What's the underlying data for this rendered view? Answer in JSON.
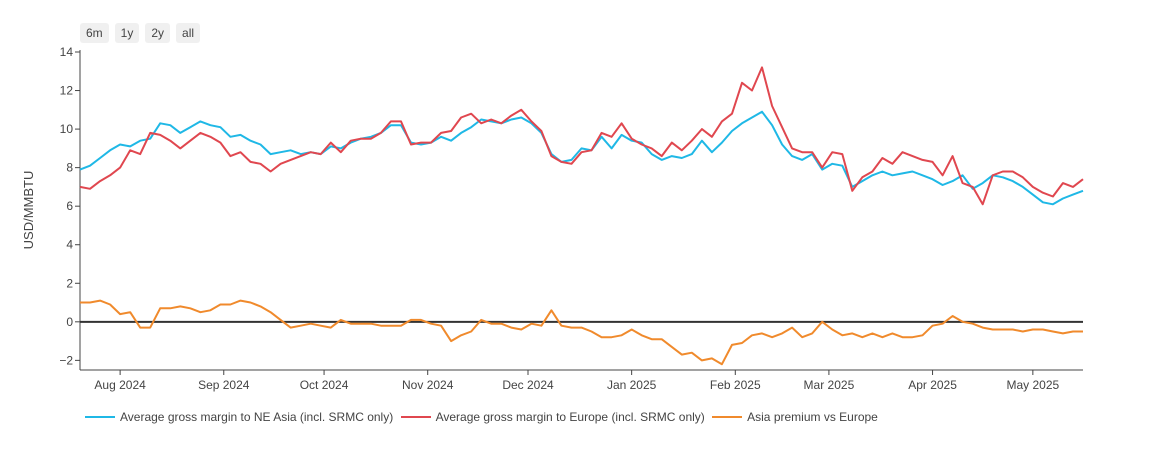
{
  "range_buttons": [
    "6m",
    "1y",
    "2y",
    "all"
  ],
  "chart_data": {
    "type": "line",
    "ylabel": "USD/MMBTU",
    "xlabel": "",
    "ylim": [
      -2.5,
      14
    ],
    "yticks": [
      14,
      12,
      10,
      8,
      6,
      4,
      2,
      0,
      -2
    ],
    "ytick_labels": [
      "14",
      "12",
      "10",
      "8",
      "6",
      "4",
      "2",
      "0",
      "−2"
    ],
    "xlim": [
      "2024-07-20",
      "2025-05-16"
    ],
    "xticks": [
      {
        "date": "2024-08-01",
        "label": "Aug 2024"
      },
      {
        "date": "2024-09-01",
        "label": "Sep 2024"
      },
      {
        "date": "2024-10-01",
        "label": "Oct 2024"
      },
      {
        "date": "2024-11-01",
        "label": "Nov 2024"
      },
      {
        "date": "2024-12-01",
        "label": "Dec 2024"
      },
      {
        "date": "2025-01-01",
        "label": "Jan 2025"
      },
      {
        "date": "2025-02-01",
        "label": "Feb 2025"
      },
      {
        "date": "2025-03-01",
        "label": "Mar 2025"
      },
      {
        "date": "2025-04-01",
        "label": "Apr 2025"
      },
      {
        "date": "2025-05-01",
        "label": "May 2025"
      }
    ],
    "zero_line": true,
    "grid": false,
    "legend_position": "bottom-left",
    "series": [
      {
        "name": "Average gross margin to NE Asia (incl. SRMC only)",
        "color": "#1fb8e6",
        "x": [
          "2024-07-20",
          "2024-07-23",
          "2024-07-26",
          "2024-07-29",
          "2024-08-01",
          "2024-08-04",
          "2024-08-07",
          "2024-08-10",
          "2024-08-13",
          "2024-08-16",
          "2024-08-19",
          "2024-08-22",
          "2024-08-25",
          "2024-08-28",
          "2024-08-31",
          "2024-09-03",
          "2024-09-06",
          "2024-09-09",
          "2024-09-12",
          "2024-09-15",
          "2024-09-18",
          "2024-09-21",
          "2024-09-24",
          "2024-09-27",
          "2024-09-30",
          "2024-10-03",
          "2024-10-06",
          "2024-10-09",
          "2024-10-12",
          "2024-10-15",
          "2024-10-18",
          "2024-10-21",
          "2024-10-24",
          "2024-10-27",
          "2024-10-30",
          "2024-11-02",
          "2024-11-05",
          "2024-11-08",
          "2024-11-11",
          "2024-11-14",
          "2024-11-17",
          "2024-11-20",
          "2024-11-23",
          "2024-11-26",
          "2024-11-29",
          "2024-12-02",
          "2024-12-05",
          "2024-12-08",
          "2024-12-11",
          "2024-12-14",
          "2024-12-17",
          "2024-12-20",
          "2024-12-23",
          "2024-12-26",
          "2024-12-29",
          "2025-01-01",
          "2025-01-04",
          "2025-01-07",
          "2025-01-10",
          "2025-01-13",
          "2025-01-16",
          "2025-01-19",
          "2025-01-22",
          "2025-01-25",
          "2025-01-28",
          "2025-01-31",
          "2025-02-03",
          "2025-02-06",
          "2025-02-09",
          "2025-02-12",
          "2025-02-15",
          "2025-02-18",
          "2025-02-21",
          "2025-02-24",
          "2025-02-27",
          "2025-03-02",
          "2025-03-05",
          "2025-03-08",
          "2025-03-11",
          "2025-03-14",
          "2025-03-17",
          "2025-03-20",
          "2025-03-23",
          "2025-03-26",
          "2025-03-29",
          "2025-04-01",
          "2025-04-04",
          "2025-04-07",
          "2025-04-10",
          "2025-04-13",
          "2025-04-16",
          "2025-04-19",
          "2025-04-22",
          "2025-04-25",
          "2025-04-28",
          "2025-05-01",
          "2025-05-04",
          "2025-05-07",
          "2025-05-10",
          "2025-05-13",
          "2025-05-16"
        ],
        "values": [
          7.9,
          8.1,
          8.5,
          8.9,
          9.2,
          9.1,
          9.4,
          9.5,
          10.3,
          10.2,
          9.8,
          10.1,
          10.4,
          10.2,
          10.1,
          9.6,
          9.7,
          9.4,
          9.2,
          8.7,
          8.8,
          8.9,
          8.7,
          8.8,
          8.7,
          9.1,
          9.0,
          9.3,
          9.5,
          9.6,
          9.8,
          10.2,
          10.2,
          9.3,
          9.2,
          9.3,
          9.6,
          9.4,
          9.8,
          10.1,
          10.5,
          10.4,
          10.3,
          10.5,
          10.6,
          10.3,
          9.8,
          8.7,
          8.3,
          8.4,
          9.0,
          8.9,
          9.6,
          9.0,
          9.7,
          9.4,
          9.3,
          8.7,
          8.4,
          8.6,
          8.5,
          8.7,
          9.4,
          8.8,
          9.3,
          9.9,
          10.3,
          10.6,
          10.9,
          10.2,
          9.2,
          8.6,
          8.4,
          8.7,
          7.9,
          8.2,
          8.1,
          7.0,
          7.3,
          7.6,
          7.8,
          7.6,
          7.7,
          7.8,
          7.6,
          7.4,
          7.1,
          7.3,
          7.6,
          6.9,
          7.2,
          7.6,
          7.5,
          7.3,
          7.0,
          6.6,
          6.2,
          6.1,
          6.4,
          6.6,
          6.8
        ]
      },
      {
        "name": "Average gross margin to Europe (incl. SRMC only)",
        "color": "#e0474f",
        "x": [
          "2024-07-20",
          "2024-07-23",
          "2024-07-26",
          "2024-07-29",
          "2024-08-01",
          "2024-08-04",
          "2024-08-07",
          "2024-08-10",
          "2024-08-13",
          "2024-08-16",
          "2024-08-19",
          "2024-08-22",
          "2024-08-25",
          "2024-08-28",
          "2024-08-31",
          "2024-09-03",
          "2024-09-06",
          "2024-09-09",
          "2024-09-12",
          "2024-09-15",
          "2024-09-18",
          "2024-09-21",
          "2024-09-24",
          "2024-09-27",
          "2024-09-30",
          "2024-10-03",
          "2024-10-06",
          "2024-10-09",
          "2024-10-12",
          "2024-10-15",
          "2024-10-18",
          "2024-10-21",
          "2024-10-24",
          "2024-10-27",
          "2024-10-30",
          "2024-11-02",
          "2024-11-05",
          "2024-11-08",
          "2024-11-11",
          "2024-11-14",
          "2024-11-17",
          "2024-11-20",
          "2024-11-23",
          "2024-11-26",
          "2024-11-29",
          "2024-12-02",
          "2024-12-05",
          "2024-12-08",
          "2024-12-11",
          "2024-12-14",
          "2024-12-17",
          "2024-12-20",
          "2024-12-23",
          "2024-12-26",
          "2024-12-29",
          "2025-01-01",
          "2025-01-04",
          "2025-01-07",
          "2025-01-10",
          "2025-01-13",
          "2025-01-16",
          "2025-01-19",
          "2025-01-22",
          "2025-01-25",
          "2025-01-28",
          "2025-01-31",
          "2025-02-03",
          "2025-02-06",
          "2025-02-09",
          "2025-02-12",
          "2025-02-15",
          "2025-02-18",
          "2025-02-21",
          "2025-02-24",
          "2025-02-27",
          "2025-03-02",
          "2025-03-05",
          "2025-03-08",
          "2025-03-11",
          "2025-03-14",
          "2025-03-17",
          "2025-03-20",
          "2025-03-23",
          "2025-03-26",
          "2025-03-29",
          "2025-04-01",
          "2025-04-04",
          "2025-04-07",
          "2025-04-10",
          "2025-04-13",
          "2025-04-16",
          "2025-04-19",
          "2025-04-22",
          "2025-04-25",
          "2025-04-28",
          "2025-05-01",
          "2025-05-04",
          "2025-05-07",
          "2025-05-10",
          "2025-05-13",
          "2025-05-16"
        ],
        "values": [
          7.0,
          6.9,
          7.3,
          7.6,
          8.0,
          8.9,
          8.7,
          9.8,
          9.7,
          9.4,
          9.0,
          9.4,
          9.8,
          9.6,
          9.3,
          8.6,
          8.8,
          8.3,
          8.2,
          7.8,
          8.2,
          8.4,
          8.6,
          8.8,
          8.7,
          9.3,
          8.8,
          9.4,
          9.5,
          9.5,
          9.8,
          10.4,
          10.4,
          9.2,
          9.3,
          9.3,
          9.8,
          9.9,
          10.6,
          10.8,
          10.3,
          10.5,
          10.3,
          10.7,
          11.0,
          10.4,
          9.9,
          8.6,
          8.3,
          8.2,
          8.8,
          8.9,
          9.8,
          9.6,
          10.3,
          9.5,
          9.2,
          9.0,
          8.6,
          9.3,
          8.9,
          9.4,
          10.0,
          9.6,
          10.4,
          10.8,
          12.4,
          12.0,
          13.2,
          11.2,
          10.1,
          9.0,
          8.8,
          8.8,
          8.0,
          8.8,
          8.7,
          6.8,
          7.5,
          7.8,
          8.5,
          8.2,
          8.8,
          8.6,
          8.4,
          8.3,
          7.6,
          8.6,
          7.2,
          7.0,
          6.1,
          7.6,
          7.8,
          7.8,
          7.5,
          7.0,
          6.7,
          6.5,
          7.2,
          7.0,
          7.4
        ]
      },
      {
        "name": "Asia premium vs Europe",
        "color": "#f08a2c",
        "x": [
          "2024-07-20",
          "2024-07-23",
          "2024-07-26",
          "2024-07-29",
          "2024-08-01",
          "2024-08-04",
          "2024-08-07",
          "2024-08-10",
          "2024-08-13",
          "2024-08-16",
          "2024-08-19",
          "2024-08-22",
          "2024-08-25",
          "2024-08-28",
          "2024-08-31",
          "2024-09-03",
          "2024-09-06",
          "2024-09-09",
          "2024-09-12",
          "2024-09-15",
          "2024-09-18",
          "2024-09-21",
          "2024-09-24",
          "2024-09-27",
          "2024-09-30",
          "2024-10-03",
          "2024-10-06",
          "2024-10-09",
          "2024-10-12",
          "2024-10-15",
          "2024-10-18",
          "2024-10-21",
          "2024-10-24",
          "2024-10-27",
          "2024-10-30",
          "2024-11-02",
          "2024-11-05",
          "2024-11-08",
          "2024-11-11",
          "2024-11-14",
          "2024-11-17",
          "2024-11-20",
          "2024-11-23",
          "2024-11-26",
          "2024-11-29",
          "2024-12-02",
          "2024-12-05",
          "2024-12-08",
          "2024-12-11",
          "2024-12-14",
          "2024-12-17",
          "2024-12-20",
          "2024-12-23",
          "2024-12-26",
          "2024-12-29",
          "2025-01-01",
          "2025-01-04",
          "2025-01-07",
          "2025-01-10",
          "2025-01-13",
          "2025-01-16",
          "2025-01-19",
          "2025-01-22",
          "2025-01-25",
          "2025-01-28",
          "2025-01-31",
          "2025-02-03",
          "2025-02-06",
          "2025-02-09",
          "2025-02-12",
          "2025-02-15",
          "2025-02-18",
          "2025-02-21",
          "2025-02-24",
          "2025-02-27",
          "2025-03-02",
          "2025-03-05",
          "2025-03-08",
          "2025-03-11",
          "2025-03-14",
          "2025-03-17",
          "2025-03-20",
          "2025-03-23",
          "2025-03-26",
          "2025-03-29",
          "2025-04-01",
          "2025-04-04",
          "2025-04-07",
          "2025-04-10",
          "2025-04-13",
          "2025-04-16",
          "2025-04-19",
          "2025-04-22",
          "2025-04-25",
          "2025-04-28",
          "2025-05-01",
          "2025-05-04",
          "2025-05-07",
          "2025-05-10",
          "2025-05-13",
          "2025-05-16"
        ],
        "values": [
          1.0,
          1.0,
          1.1,
          0.9,
          0.4,
          0.5,
          -0.3,
          -0.3,
          0.7,
          0.7,
          0.8,
          0.7,
          0.5,
          0.6,
          0.9,
          0.9,
          1.1,
          1.0,
          0.8,
          0.5,
          0.1,
          -0.3,
          -0.2,
          -0.1,
          -0.2,
          -0.3,
          0.1,
          -0.1,
          -0.1,
          -0.1,
          -0.2,
          -0.2,
          -0.2,
          0.1,
          0.1,
          -0.1,
          -0.2,
          -1.0,
          -0.7,
          -0.5,
          0.1,
          -0.1,
          -0.1,
          -0.3,
          -0.4,
          -0.1,
          -0.2,
          0.6,
          -0.2,
          -0.3,
          -0.3,
          -0.5,
          -0.8,
          -0.8,
          -0.7,
          -0.4,
          -0.7,
          -0.9,
          -0.9,
          -1.3,
          -1.7,
          -1.6,
          -2.0,
          -1.9,
          -2.2,
          -1.2,
          -1.1,
          -0.7,
          -0.6,
          -0.8,
          -0.6,
          -0.3,
          -0.8,
          -0.6,
          0.0,
          -0.4,
          -0.7,
          -0.6,
          -0.8,
          -0.6,
          -0.8,
          -0.6,
          -0.8,
          -0.8,
          -0.7,
          -0.2,
          -0.1,
          0.3,
          0.0,
          -0.1,
          -0.3,
          -0.4,
          -0.4,
          -0.4,
          -0.5,
          -0.4,
          -0.4,
          -0.5,
          -0.6,
          -0.5,
          -0.5
        ]
      }
    ]
  }
}
